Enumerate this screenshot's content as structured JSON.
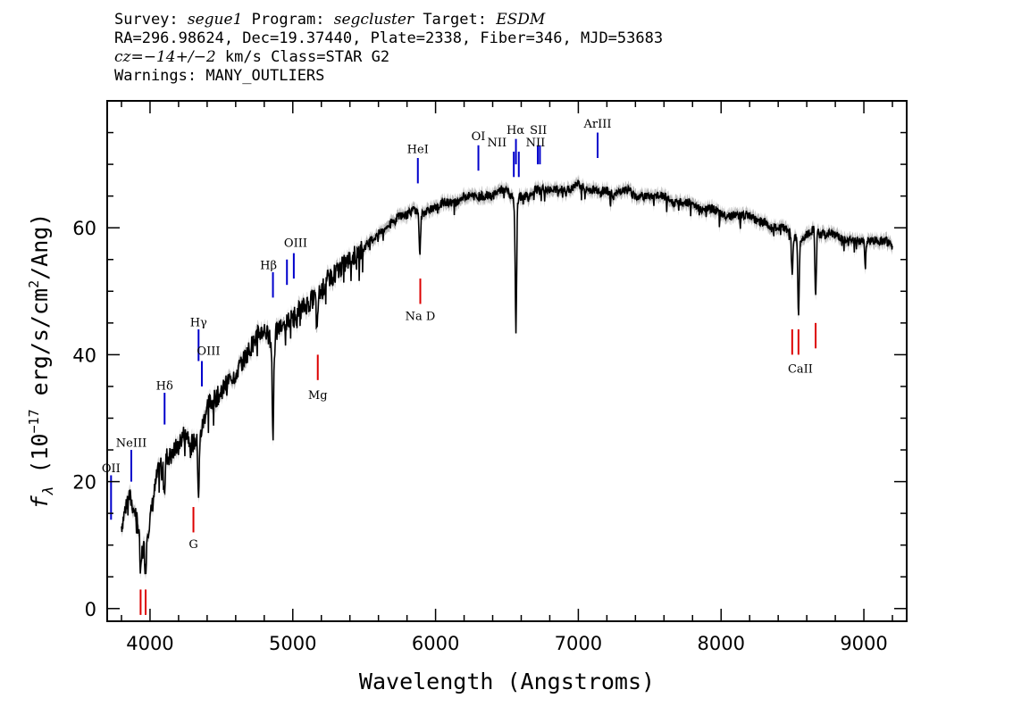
{
  "header": {
    "line1": {
      "survey_label": "Survey: ",
      "survey": "segue1",
      "program_label": " Program: ",
      "program": "segcluster",
      "target_label": " Target: ",
      "target": "ESDM"
    },
    "line2": "RA=296.98624, Dec=19.37440, Plate=2338, Fiber=346, MJD=53683",
    "line3": {
      "cz_label": "cz=",
      "cz_value": "−14+/−2",
      "cz_rest": " km/s Class=STAR G2"
    },
    "line4": "Warnings: MANY_OUTLIERS"
  },
  "colors": {
    "spectrum": "#000000",
    "error_band": "#b8b8b8",
    "emission_lines": "#0000cc",
    "absorption_lines": "#dd0000"
  },
  "chart_data": {
    "type": "line",
    "title": "",
    "xlabel": "Wavelength (Angstroms)",
    "ylabel_parts": {
      "f": "f",
      "lambda": "λ",
      "paren_open": " (10",
      "exp": "−17",
      "unit": " erg/s/cm",
      "sq": "2",
      "tail": "/Ang)"
    },
    "xlim": [
      3700,
      9300
    ],
    "ylim": [
      -2,
      80
    ],
    "xticks": [
      4000,
      5000,
      6000,
      7000,
      8000,
      9000
    ],
    "yticks": [
      0,
      20,
      40,
      60
    ],
    "series": [
      {
        "x": [
          3800,
          3850,
          3900,
          3950,
          4000,
          4050,
          4100,
          4150,
          4200,
          4250,
          4300,
          4350,
          4400,
          4450,
          4500,
          4550,
          4600,
          4650,
          4700,
          4750,
          4800,
          4850,
          4900,
          4950,
          5000,
          5050,
          5100,
          5150,
          5200,
          5250,
          5300,
          5350,
          5400,
          5450,
          5500,
          5550,
          5600,
          5650,
          5700,
          5750,
          5800,
          5850,
          5900,
          5950,
          6000,
          6050,
          6100,
          6150,
          6200,
          6250,
          6300,
          6350,
          6400,
          6450,
          6500,
          6550,
          6600,
          6650,
          6700,
          6750,
          6800,
          6850,
          6900,
          6950,
          7000,
          7050,
          7100,
          7150,
          7200,
          7250,
          7300,
          7350,
          7400,
          7450,
          7500,
          7550,
          7600,
          7650,
          7700,
          7750,
          7800,
          7850,
          7900,
          7950,
          8000,
          8050,
          8100,
          8150,
          8200,
          8250,
          8300,
          8350,
          8400,
          8450,
          8500,
          8550,
          8600,
          8650,
          8700,
          8750,
          8800,
          8850,
          8900,
          8950,
          9000,
          9050,
          9100,
          9150,
          9200
        ],
        "y": [
          13,
          18,
          15,
          9,
          14,
          21,
          24,
          24,
          26,
          28,
          26,
          27,
          32,
          33,
          34,
          36,
          37,
          39,
          41,
          43,
          44,
          42,
          44,
          45,
          46,
          47,
          48,
          49,
          50,
          52,
          53,
          54,
          55,
          56,
          57,
          58,
          59,
          60,
          61,
          62,
          62,
          63,
          62,
          63,
          63,
          64,
          64,
          64,
          65,
          65,
          65,
          65,
          65,
          66,
          66,
          64,
          65,
          65,
          66,
          66,
          66,
          66,
          66,
          66,
          67,
          66,
          66,
          66,
          66,
          65,
          66,
          66,
          65,
          65,
          65,
          65,
          65,
          64,
          64,
          64,
          64,
          63,
          63,
          63,
          62,
          62,
          62,
          62,
          62,
          61,
          61,
          60,
          60,
          60,
          59,
          58,
          59,
          60,
          59,
          59,
          59,
          58,
          58,
          58,
          58,
          58,
          58,
          58,
          57
        ]
      }
    ],
    "absorption_dips": [
      {
        "x": 3934,
        "y": 5
      },
      {
        "x": 3969,
        "y": 6
      },
      {
        "x": 4102,
        "y": 19
      },
      {
        "x": 4340,
        "y": 18
      },
      {
        "x": 4861,
        "y": 27
      },
      {
        "x": 5170,
        "y": 43
      },
      {
        "x": 5890,
        "y": 56
      },
      {
        "x": 6563,
        "y": 44
      },
      {
        "x": 8498,
        "y": 52
      },
      {
        "x": 8542,
        "y": 46
      },
      {
        "x": 8662,
        "y": 49
      },
      {
        "x": 9010,
        "y": 54
      }
    ],
    "emission_lines": [
      {
        "label": "OII",
        "x": 3727,
        "y0": 14,
        "y1": 21
      },
      {
        "label": "NeIII",
        "x": 3869,
        "y0": 20,
        "y1": 25
      },
      {
        "label": "Hδ",
        "x": 4102,
        "y0": 29,
        "y1": 34
      },
      {
        "label": "Hγ",
        "x": 4340,
        "y0": 39,
        "y1": 44
      },
      {
        "label": "OIII",
        "x": 4363,
        "y0": 35,
        "y1": 39
      },
      {
        "label": "Hβ",
        "x": 4861,
        "y0": 49,
        "y1": 53
      },
      {
        "label": "OIII",
        "x": 4959,
        "y0": 51,
        "y1": 55
      },
      {
        "label": "OIII",
        "x": 5007,
        "y0": 52,
        "y1": 56
      },
      {
        "label": "HeI",
        "x": 5876,
        "y0": 67,
        "y1": 71
      },
      {
        "label": "OI",
        "x": 6300,
        "y0": 69,
        "y1": 73
      },
      {
        "label": "NII",
        "x": 6548,
        "y0": 68,
        "y1": 72
      },
      {
        "label": "Hα",
        "x": 6563,
        "y0": 70,
        "y1": 74
      },
      {
        "label": "NII",
        "x": 6583,
        "y0": 68,
        "y1": 72
      },
      {
        "label": "SII",
        "x": 6716,
        "y0": 70,
        "y1": 73
      },
      {
        "label": "SII",
        "x": 6731,
        "y0": 70,
        "y1": 73
      },
      {
        "label": "ArIII",
        "x": 7135,
        "y0": 71,
        "y1": 75
      }
    ],
    "emission_labels": [
      {
        "text": "OII",
        "x": 3727,
        "y": 21.5
      },
      {
        "text": "NeIII",
        "x": 3869,
        "y": 25.5
      },
      {
        "text": "Hδ",
        "x": 4102,
        "y": 34.5
      },
      {
        "text": "Hγ",
        "x": 4340,
        "y": 44.5
      },
      {
        "text": "OIII",
        "x": 4410,
        "y": 40
      },
      {
        "text": "Hβ",
        "x": 4830,
        "y": 53.5
      },
      {
        "text": "OIII",
        "x": 5020,
        "y": 57
      },
      {
        "text": "HeI",
        "x": 5876,
        "y": 71.8
      },
      {
        "text": "OI",
        "x": 6300,
        "y": 73.8
      },
      {
        "text": "NII",
        "x": 6430,
        "y": 72.8
      },
      {
        "text": "Hα",
        "x": 6560,
        "y": 74.8
      },
      {
        "text": "SII",
        "x": 6720,
        "y": 74.8
      },
      {
        "text": "NII",
        "x": 6700,
        "y": 72.8
      },
      {
        "text": "ArIII",
        "x": 7135,
        "y": 75.8
      }
    ],
    "absorption_lines": [
      {
        "x": 3934,
        "y0": -1,
        "y1": 3
      },
      {
        "x": 3969,
        "y0": -1,
        "y1": 3
      },
      {
        "x": 4304,
        "y0": 12,
        "y1": 16
      },
      {
        "x": 5175,
        "y0": 36,
        "y1": 40
      },
      {
        "x": 5893,
        "y0": 48,
        "y1": 52
      },
      {
        "x": 8498,
        "y0": 40,
        "y1": 44
      },
      {
        "x": 8542,
        "y0": 40,
        "y1": 44
      },
      {
        "x": 8662,
        "y0": 41,
        "y1": 45
      }
    ],
    "absorption_labels": [
      {
        "text": "G",
        "x": 4304,
        "y": 9.5
      },
      {
        "text": "Mg",
        "x": 5175,
        "y": 33
      },
      {
        "text": "Na  D",
        "x": 5893,
        "y": 45.5
      },
      {
        "text": "CaII",
        "x": 8555,
        "y": 37.2
      }
    ]
  }
}
